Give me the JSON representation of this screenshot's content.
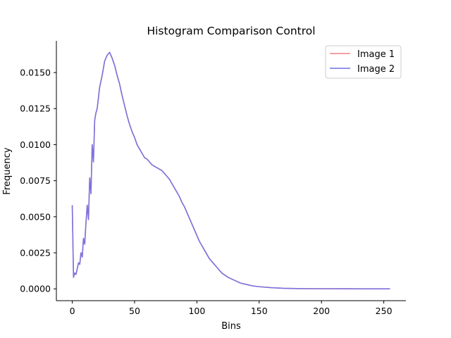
{
  "chart_data": {
    "type": "line",
    "title": "Histogram Comparison Control",
    "xlabel": "Bins",
    "ylabel": "Frequency",
    "xlim": [
      -12.75,
      267.75
    ],
    "ylim": [
      -0.00082,
      0.0172
    ],
    "xticks": [
      0,
      50,
      100,
      150,
      200,
      250
    ],
    "xtick_labels": [
      "0",
      "50",
      "100",
      "150",
      "200",
      "250"
    ],
    "yticks": [
      0,
      0.0025,
      0.005,
      0.0075,
      0.01,
      0.0125,
      0.015
    ],
    "ytick_labels": [
      "0.0000",
      "0.0025",
      "0.0050",
      "0.0075",
      "0.0100",
      "0.0125",
      "0.0150"
    ],
    "grid": false,
    "legend_position": "top-right",
    "series": [
      {
        "name": "Image 1",
        "color": "#f08080",
        "opacity": 0.9,
        "x": [
          0,
          1,
          2,
          3,
          4,
          5,
          6,
          7,
          8,
          9,
          10,
          11,
          12,
          13,
          14,
          15,
          16,
          17,
          18,
          19,
          20,
          22,
          24,
          26,
          28,
          30,
          32,
          34,
          36,
          38,
          40,
          42,
          44,
          46,
          48,
          50,
          52,
          54,
          56,
          58,
          60,
          62,
          64,
          66,
          68,
          70,
          72,
          74,
          76,
          78,
          80,
          82,
          84,
          86,
          88,
          90,
          92,
          94,
          96,
          98,
          100,
          102,
          104,
          106,
          108,
          110,
          112,
          114,
          116,
          118,
          120,
          125,
          130,
          135,
          140,
          145,
          150,
          160,
          170,
          180,
          200,
          220,
          240,
          255
        ],
        "y": [
          0.0058,
          0.0008,
          0.0011,
          0.001,
          0.0014,
          0.0018,
          0.0017,
          0.0025,
          0.0022,
          0.0035,
          0.0031,
          0.0046,
          0.0058,
          0.0048,
          0.0077,
          0.0066,
          0.01,
          0.0088,
          0.0117,
          0.0122,
          0.0125,
          0.014,
          0.0148,
          0.0158,
          0.0162,
          0.0164,
          0.016,
          0.0155,
          0.0148,
          0.0142,
          0.0134,
          0.0127,
          0.012,
          0.0114,
          0.0109,
          0.0105,
          0.01,
          0.0097,
          0.0094,
          0.0091,
          0.009,
          0.0088,
          0.0086,
          0.0085,
          0.0084,
          0.0083,
          0.0082,
          0.008,
          0.0078,
          0.0076,
          0.0073,
          0.007,
          0.0067,
          0.0064,
          0.006,
          0.0057,
          0.0053,
          0.0049,
          0.0045,
          0.0041,
          0.0037,
          0.0033,
          0.003,
          0.0027,
          0.0024,
          0.0021,
          0.0019,
          0.0017,
          0.0015,
          0.0013,
          0.0011,
          0.0008,
          0.0006,
          0.0004,
          0.0003,
          0.0002,
          0.00015,
          8e-05,
          4e-05,
          2e-05,
          1e-05,
          5e-06,
          2e-06,
          0.0
        ]
      },
      {
        "name": "Image 2",
        "color": "#7070e8",
        "opacity": 0.9,
        "x": [
          0,
          1,
          2,
          3,
          4,
          5,
          6,
          7,
          8,
          9,
          10,
          11,
          12,
          13,
          14,
          15,
          16,
          17,
          18,
          19,
          20,
          22,
          24,
          26,
          28,
          30,
          32,
          34,
          36,
          38,
          40,
          42,
          44,
          46,
          48,
          50,
          52,
          54,
          56,
          58,
          60,
          62,
          64,
          66,
          68,
          70,
          72,
          74,
          76,
          78,
          80,
          82,
          84,
          86,
          88,
          90,
          92,
          94,
          96,
          98,
          100,
          102,
          104,
          106,
          108,
          110,
          112,
          114,
          116,
          118,
          120,
          125,
          130,
          135,
          140,
          145,
          150,
          160,
          170,
          180,
          200,
          220,
          240,
          255
        ],
        "y": [
          0.0058,
          0.0008,
          0.0011,
          0.001,
          0.0014,
          0.0018,
          0.0017,
          0.0025,
          0.0022,
          0.0035,
          0.0031,
          0.0046,
          0.0058,
          0.0048,
          0.0077,
          0.0066,
          0.01,
          0.0088,
          0.0117,
          0.0122,
          0.0125,
          0.014,
          0.0148,
          0.0158,
          0.0162,
          0.0164,
          0.016,
          0.0155,
          0.0148,
          0.0142,
          0.0134,
          0.0127,
          0.012,
          0.0114,
          0.0109,
          0.0105,
          0.01,
          0.0097,
          0.0094,
          0.0091,
          0.009,
          0.0088,
          0.0086,
          0.0085,
          0.0084,
          0.0083,
          0.0082,
          0.008,
          0.0078,
          0.0076,
          0.0073,
          0.007,
          0.0067,
          0.0064,
          0.006,
          0.0057,
          0.0053,
          0.0049,
          0.0045,
          0.0041,
          0.0037,
          0.0033,
          0.003,
          0.0027,
          0.0024,
          0.0021,
          0.0019,
          0.0017,
          0.0015,
          0.0013,
          0.0011,
          0.0008,
          0.0006,
          0.0004,
          0.0003,
          0.0002,
          0.00015,
          8e-05,
          4e-05,
          2e-05,
          1e-05,
          5e-06,
          2e-06,
          0.0
        ]
      }
    ]
  }
}
